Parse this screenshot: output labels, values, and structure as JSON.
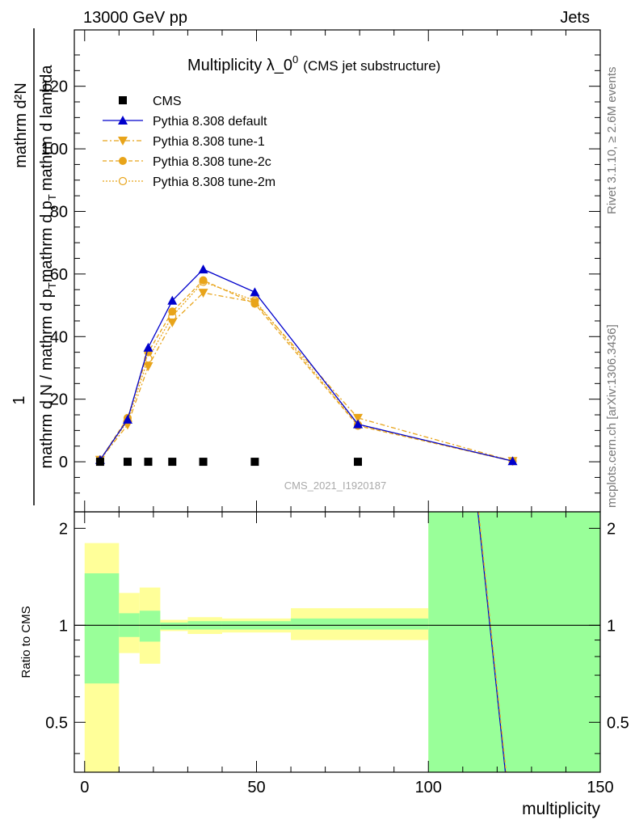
{
  "header": {
    "energy_label": "13000 GeV pp",
    "category_label": "Jets"
  },
  "side_labels": {
    "rivet": "Rivet 3.1.10, ≥ 2.6M events",
    "mcplots": "mcplots.cern.ch [arXiv:1306.3436]"
  },
  "watermark": "CMS_2021_I1920187",
  "colors": {
    "default": "#0000cc",
    "tune": "#e8a41a",
    "band_inner": "#99ff99",
    "band_outer": "#ffff99",
    "data": "#000000"
  },
  "chart_data": [
    {
      "type": "line",
      "title_main": "Multiplicity λ_0",
      "title_sup": "0",
      "title_sub": "(CMS jet substructure)",
      "ylabel_num": "1",
      "ylabel_num_right": "mathrm d²N",
      "ylabel_den": "mathrm d N / mathrm d p",
      "ylabel_den_sub": "T",
      "ylabel_den_rest": "mathrm d p",
      "ylabel_den_sub2": "T",
      "ylabel_den_end": "mathrm d lambda",
      "ylim": [
        -16,
        138
      ],
      "xlim": [
        -3,
        150
      ],
      "yticks": [
        0,
        20,
        40,
        60,
        80,
        100,
        120
      ],
      "legend_position": "top-left",
      "series": [
        {
          "name": "CMS",
          "marker": "square",
          "x": [
            4.5,
            12.5,
            18.5,
            25.5,
            34.5,
            49.5,
            79.5
          ],
          "y": [
            0,
            0,
            0,
            0,
            0,
            0,
            0
          ]
        },
        {
          "name": "Pythia 8.308 default",
          "marker": "triangle-up",
          "x": [
            4.5,
            12.5,
            18.5,
            25.5,
            34.5,
            49.5,
            79.5,
            124.5
          ],
          "y": [
            0.6,
            13.5,
            36.5,
            51.5,
            61.5,
            54.2,
            12.0,
            0.2
          ]
        },
        {
          "name": "Pythia 8.308 tune-1",
          "marker": "triangle-down",
          "x": [
            4.5,
            12.5,
            18.5,
            25.5,
            34.5,
            49.5,
            79.5,
            124.5
          ],
          "y": [
            0.6,
            11.8,
            30.5,
            44.5,
            54.0,
            51.0,
            14.0,
            0.2
          ]
        },
        {
          "name": "Pythia 8.308 tune-2c",
          "marker": "circle-filled",
          "x": [
            4.5,
            12.5,
            18.5,
            25.5,
            34.5,
            49.5,
            79.5,
            124.5
          ],
          "y": [
            0.6,
            14.0,
            35.0,
            48.0,
            58.0,
            50.5,
            11.5,
            0.2
          ]
        },
        {
          "name": "Pythia 8.308 tune-2m",
          "marker": "circle-open",
          "x": [
            4.5,
            12.5,
            18.5,
            25.5,
            34.5,
            49.5,
            79.5,
            124.5
          ],
          "y": [
            0.6,
            13.0,
            33.0,
            46.5,
            57.5,
            51.5,
            11.8,
            0.2
          ]
        }
      ]
    },
    {
      "type": "area",
      "ylabel": "Ratio to CMS",
      "xlabel": "multiplicity",
      "xlim": [
        -3,
        150
      ],
      "ylim": [
        0.35,
        2.25
      ],
      "xticks": [
        0,
        50,
        100,
        150
      ],
      "yticks": [
        "0.5",
        "1",
        "2"
      ],
      "ytick_values": [
        0.5,
        1,
        2
      ],
      "reference_line": 1,
      "bands": [
        {
          "x0": 0,
          "x1": 10,
          "inner": [
            0.66,
            1.45
          ],
          "outer": [
            0.35,
            1.8
          ]
        },
        {
          "x0": 10,
          "x1": 16,
          "inner": [
            0.92,
            1.09
          ],
          "outer": [
            0.82,
            1.26
          ]
        },
        {
          "x0": 16,
          "x1": 22,
          "inner": [
            0.89,
            1.11
          ],
          "outer": [
            0.76,
            1.31
          ]
        },
        {
          "x0": 22,
          "x1": 30,
          "inner": [
            0.97,
            1.02
          ],
          "outer": [
            0.96,
            1.04
          ]
        },
        {
          "x0": 30,
          "x1": 40,
          "inner": [
            0.97,
            1.03
          ],
          "outer": [
            0.94,
            1.06
          ]
        },
        {
          "x0": 40,
          "x1": 60,
          "inner": [
            0.97,
            1.03
          ],
          "outer": [
            0.95,
            1.05
          ]
        },
        {
          "x0": 60,
          "x1": 100,
          "inner": [
            0.97,
            1.05
          ],
          "outer": [
            0.9,
            1.13
          ]
        },
        {
          "x0": 100,
          "x1": 150,
          "inner": [
            0.35,
            2.25
          ],
          "outer": [
            0.35,
            2.25
          ]
        }
      ],
      "ratio_lines": [
        {
          "name": "Pythia 8.308 default",
          "x": [
            114.4,
            122.4
          ],
          "y": [
            2.25,
            0.35
          ]
        },
        {
          "name": "Pythia 8.308 tune-1",
          "x": [
            114.6,
            122.6
          ],
          "y": [
            2.25,
            0.35
          ]
        }
      ]
    }
  ]
}
